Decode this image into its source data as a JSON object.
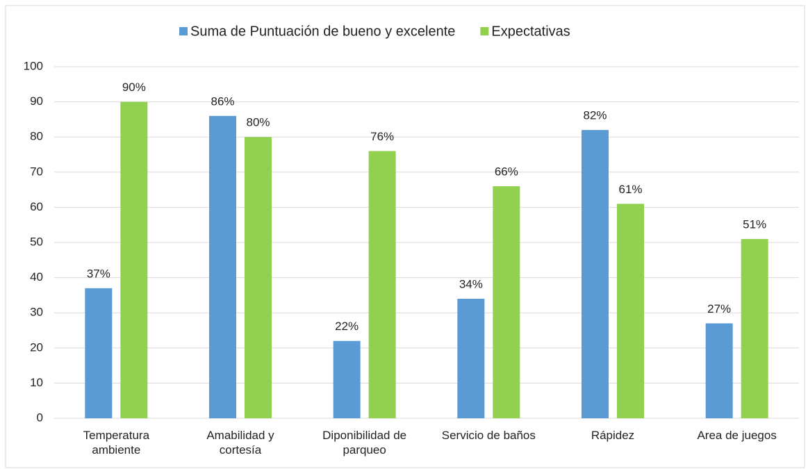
{
  "chart_data": {
    "type": "bar",
    "categories": [
      "Temperatura ambiente",
      "Amabilidad y cortesía",
      "Diponibilidad de parqueo",
      "Servicio de baños",
      "Rápidez",
      "Area de juegos"
    ],
    "series": [
      {
        "name": "Suma de Puntuación de bueno y excelente",
        "color": "#5b9bd5",
        "values": [
          37,
          86,
          22,
          34,
          82,
          27
        ],
        "value_labels": [
          "37%",
          "86%",
          "22%",
          "34%",
          "82%",
          "27%"
        ]
      },
      {
        "name": "Expectativas",
        "color": "#92d050",
        "values": [
          90,
          80,
          76,
          66,
          61,
          51
        ],
        "value_labels": [
          "90%",
          "80%",
          "76%",
          "66%",
          "61%",
          "51%"
        ]
      }
    ],
    "ylim": [
      0,
      100
    ],
    "yticks": [
      0,
      10,
      20,
      30,
      40,
      50,
      60,
      70,
      80,
      90,
      100
    ],
    "grid": true,
    "legend": "top"
  }
}
